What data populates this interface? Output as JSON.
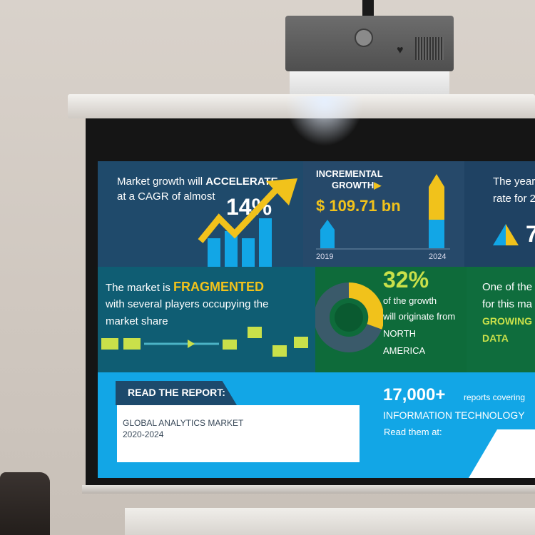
{
  "infographic": {
    "panel1": {
      "line1": "Market growth will",
      "line1_bold": "ACCELERATE",
      "line2": "at a CAGR of almost",
      "value": "14%"
    },
    "panel2": {
      "title1": "INCREMENTAL",
      "title2": "GROWTH",
      "value": "$ 109.71 bn",
      "year_start": "2019",
      "year_end": "2024"
    },
    "panel3": {
      "line1": "The year",
      "line2": "rate for 2",
      "value": "7"
    },
    "panel4": {
      "line1": "The market is",
      "line1_bold": "FRAGMENTED",
      "line2": "with several players occupying the",
      "line3": "market share"
    },
    "panel5": {
      "value": "32%",
      "line1": "of the growth",
      "line2": "will originate from",
      "line3": "NORTH",
      "line4": "AMERICA"
    },
    "panel6": {
      "line1": "One of the",
      "line2": "for this ma",
      "line3": "GROWING",
      "line4": "DATA"
    },
    "panel7": {
      "read_label": "READ THE REPORT:",
      "report_title": "GLOBAL ANALYTICS MARKET",
      "report_years": "2020-2024",
      "count": "17,000+",
      "count_suffix": "reports covering",
      "category": "INFORMATION TECHNOLOGY",
      "read_at": "Read them at:"
    }
  },
  "colors": {
    "accent_yellow": "#f1c21b",
    "accent_blue": "#12a6e6",
    "green": "#0e6b3a",
    "navy": "#1f4a6b"
  }
}
